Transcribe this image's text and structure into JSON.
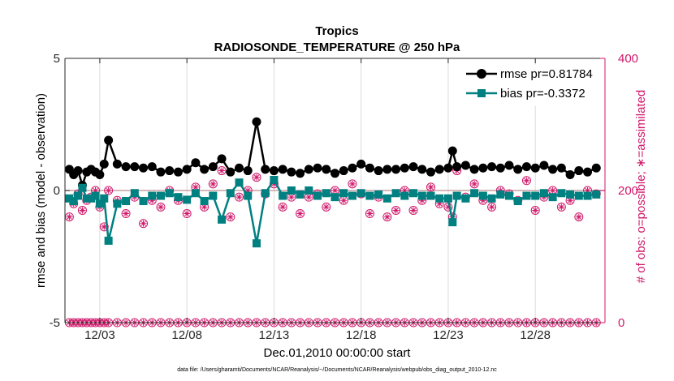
{
  "chart_data": {
    "type": "line",
    "title": "Tropics",
    "subtitle": "RADIOSONDE_TEMPERATURE @ 250 hPa",
    "xlabel": "Dec.01,2010 00:00:00 start",
    "ylabel": "rmse and bias (model - observation)",
    "y2label": "# of obs: o=possible; ∗=assimilated",
    "footnote": "data file: /Users/gharamti/Documents/NCAR/Reanalysis/~/Documents/NCAR/Reanalysis/webpub/obs_diag_output_2010-12.nc",
    "xlim": [
      1,
      32
    ],
    "ylim": [
      -5,
      5
    ],
    "y2lim": [
      0,
      400
    ],
    "x_ticks": [
      3,
      8,
      13,
      18,
      23,
      28
    ],
    "x_tick_labels": [
      "12/03",
      "12/08",
      "12/13",
      "12/18",
      "12/23",
      "12/28"
    ],
    "y_ticks": [
      -5,
      0,
      5
    ],
    "y_tick_labels": [
      "-5",
      "0",
      "5"
    ],
    "y2_ticks": [
      0,
      200,
      400
    ],
    "y2_tick_labels": [
      "0",
      "200",
      "400"
    ],
    "grid": true,
    "legend_position": "top-right",
    "colors": {
      "rmse": "#000000",
      "bias": "#008080",
      "obs": "#d0186a",
      "zero_line": "#c8a0a0"
    },
    "x": [
      1.25,
      1.5,
      1.75,
      2.0,
      2.25,
      2.5,
      2.75,
      3.0,
      3.25,
      3.5,
      4.0,
      4.5,
      5.0,
      5.5,
      6.0,
      6.5,
      7.0,
      7.5,
      8.0,
      8.5,
      9.0,
      9.5,
      10.0,
      10.5,
      11.0,
      11.5,
      12.0,
      12.5,
      13.0,
      13.5,
      14.0,
      14.5,
      15.0,
      15.5,
      16.0,
      16.5,
      17.0,
      17.5,
      18.0,
      18.5,
      19.0,
      19.5,
      20.0,
      20.5,
      21.0,
      21.5,
      22.0,
      22.5,
      23.0,
      23.25,
      23.5,
      24.0,
      24.5,
      25.0,
      25.5,
      26.0,
      26.5,
      27.0,
      27.5,
      28.0,
      28.5,
      29.0,
      29.5,
      30.0,
      30.5,
      31.0,
      31.5
    ],
    "series": [
      {
        "name": "rmse",
        "legend": "rmse pr=0.81784",
        "values": [
          0.8,
          0.6,
          0.75,
          0.2,
          0.7,
          0.8,
          0.7,
          0.6,
          1.0,
          1.9,
          1.0,
          0.9,
          0.9,
          0.85,
          0.9,
          0.7,
          0.75,
          0.7,
          0.8,
          1.05,
          0.8,
          0.9,
          1.2,
          0.7,
          0.85,
          0.75,
          2.6,
          0.8,
          0.75,
          0.8,
          0.7,
          0.65,
          0.8,
          0.85,
          0.8,
          0.65,
          0.75,
          0.85,
          1.0,
          0.85,
          0.75,
          0.8,
          0.8,
          0.85,
          0.9,
          0.8,
          0.7,
          0.8,
          0.85,
          1.5,
          0.9,
          0.95,
          0.8,
          0.85,
          0.9,
          0.85,
          0.95,
          0.8,
          0.9,
          0.85,
          0.95,
          0.8,
          0.85,
          0.6,
          0.75,
          0.7,
          0.85
        ]
      },
      {
        "name": "bias",
        "legend": "bias pr=-0.3372",
        "values": [
          -0.3,
          -0.4,
          -0.2,
          0.1,
          -0.3,
          -0.3,
          -0.2,
          -0.5,
          -0.3,
          -1.9,
          -0.5,
          -0.4,
          -0.1,
          -0.4,
          -0.2,
          -0.2,
          -0.1,
          -0.25,
          -0.35,
          -0.1,
          -0.4,
          -0.2,
          -1.1,
          -0.1,
          0.3,
          -0.2,
          -2.0,
          -0.1,
          0.4,
          -0.2,
          0.0,
          -0.15,
          0.0,
          -0.2,
          -0.1,
          -0.25,
          -0.1,
          -0.2,
          -0.1,
          -0.2,
          -0.15,
          -0.3,
          -0.1,
          -0.2,
          -0.1,
          -0.2,
          -0.2,
          -0.3,
          -0.3,
          -1.2,
          -0.2,
          -0.3,
          -0.1,
          -0.2,
          -0.3,
          -0.15,
          -0.2,
          -0.4,
          -0.2,
          -0.2,
          -0.1,
          -0.25,
          -0.1,
          -0.15,
          -0.2,
          -0.2,
          -0.15
        ]
      },
      {
        "name": "obs_possible",
        "values": [
          160,
          180,
          195,
          170,
          185,
          190,
          200,
          175,
          145,
          200,
          185,
          165,
          190,
          150,
          185,
          175,
          200,
          185,
          165,
          205,
          175,
          210,
          230,
          160,
          190,
          200,
          220,
          195,
          210,
          175,
          190,
          165,
          190,
          195,
          175,
          200,
          185,
          210,
          195,
          165,
          190,
          160,
          170,
          200,
          170,
          185,
          205,
          180,
          175,
          160,
          230,
          190,
          210,
          185,
          175,
          200,
          195,
          185,
          215,
          170,
          190,
          200,
          175,
          185,
          160,
          200,
          195
        ]
      },
      {
        "name": "obs_assimilated",
        "values": [
          160,
          180,
          195,
          170,
          185,
          190,
          200,
          175,
          145,
          200,
          185,
          165,
          190,
          150,
          185,
          175,
          200,
          185,
          165,
          205,
          175,
          210,
          230,
          160,
          190,
          200,
          220,
          195,
          210,
          175,
          190,
          165,
          190,
          195,
          175,
          200,
          185,
          210,
          195,
          165,
          190,
          160,
          170,
          200,
          170,
          185,
          205,
          180,
          175,
          160,
          230,
          190,
          210,
          185,
          175,
          200,
          195,
          185,
          215,
          170,
          190,
          200,
          175,
          185,
          160,
          200,
          195
        ]
      }
    ],
    "x_zero_obs": [
      1.25,
      1.5,
      1.75,
      2.0,
      2.25,
      2.5,
      2.75,
      3.0,
      3.25,
      3.5,
      4.0,
      4.5,
      5.0,
      5.5,
      6.0,
      6.5,
      7.0,
      7.5,
      8.0,
      8.5,
      9.0,
      9.5,
      10.0,
      10.5,
      11.0,
      11.5,
      12.0,
      12.5,
      13.0,
      13.5,
      14.0,
      14.5,
      15.0,
      15.5,
      16.0,
      16.5,
      17.0,
      17.5,
      18.0,
      18.5,
      19.0,
      19.5,
      20.0,
      20.5,
      21.0,
      21.5,
      22.0,
      22.5,
      23.0,
      23.5,
      24.0,
      24.5,
      25.0,
      25.5,
      26.0,
      26.5,
      27.0,
      27.5,
      28.0,
      28.5,
      29.0,
      29.5,
      30.0,
      30.5,
      31.0,
      31.5
    ]
  }
}
